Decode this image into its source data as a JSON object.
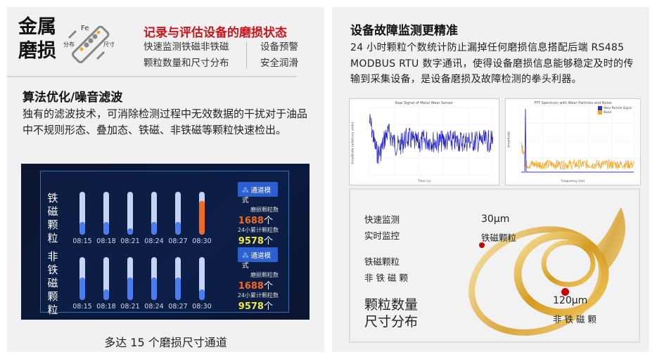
{
  "left": {
    "title_line1": "金属",
    "title_line2": "磨损",
    "icon": {
      "fe": "Fe",
      "left": "分布",
      "right": "尺寸"
    },
    "headline": "记录与评估设备的磨损状态",
    "features_a": [
      "快速监测铁磁非铁磁",
      "颗粒数量和尺寸分布"
    ],
    "features_b": [
      "设备预警",
      "安全润滑"
    ],
    "section_title": "算法优化/噪音滤波",
    "section_text": "独有的滤波技术，可消除检测过程中无效数据的干扰对于油品中不规则形态、叠加态、铁磁、非铁磁等颗粒快速检出。",
    "dashboard": {
      "rows": [
        {
          "label": "铁磁颗粒",
          "mode_button": "通道模式",
          "count_label": "磨损颗粒数",
          "count": "1688",
          "unit": "个",
          "total_label": "24小累计颗粒数",
          "total": "9578",
          "bars": [
            {
              "time": "08:15",
              "level": 0.3
            },
            {
              "time": "08:18",
              "level": 0.3
            },
            {
              "time": "08:21",
              "level": 0.15
            },
            {
              "time": "08:24",
              "level": 0.3
            },
            {
              "time": "08:27",
              "level": 0.3
            },
            {
              "time": "08:30",
              "level": 0.78,
              "alert": true
            }
          ]
        },
        {
          "label": "非铁磁颗粒",
          "mode_button": "通道模式",
          "count_label": "磨损颗粒数",
          "count": "1688",
          "unit": "个",
          "total_label": "24小累计颗粒数",
          "total": "9578",
          "bars": [
            {
              "time": "08:15",
              "level": 0.53
            },
            {
              "time": "08:18",
              "level": 0.25
            },
            {
              "time": "08:21",
              "level": 0.53
            },
            {
              "time": "08:24",
              "level": 0.53
            },
            {
              "time": "08:27",
              "level": 0.53
            },
            {
              "time": "08:30",
              "level": 0.25
            }
          ]
        }
      ],
      "colors": {
        "normal": "#4a7cf2",
        "alert": "#f26a1b",
        "count": "#f26a1b",
        "total": "#f2e83a"
      }
    },
    "caption": "多达 15 个磨损尺寸通道"
  },
  "right": {
    "title": "设备故障监测更精准",
    "text": "24 小时颗粒个数统计防止漏掉任何磨损信息搭配后端 RS485 MODBUS RTU 数字通讯，使得设备磨损信息能够稳定及时的传输到采集设备，是设备磨损及故障检测的拳头利器。",
    "chart1": {
      "title": "Raw Signal of Metal Wear Sensor",
      "xlabel": "Time (s)",
      "ylabel": "Amplitude (arbitrary units)"
    },
    "chart2": {
      "title": "FFT Spectrum with Wear Particles and Noise",
      "xlabel": "Frequency (Hz)",
      "ylabel": "Amplitude",
      "legend": [
        "Wear Particle Signal",
        "Noise"
      ]
    },
    "image": {
      "list1": [
        "快速监测",
        "实时监控"
      ],
      "list2": [
        "铁磁颗粒",
        "非 铁 磁 颗"
      ],
      "big": [
        "颗粒数量",
        "尺寸分布"
      ],
      "marker1": {
        "size": "30μm",
        "label": "铁磁颗粒"
      },
      "marker2": {
        "size": "120μm",
        "label": "非 铁 磁 颗"
      }
    }
  }
}
